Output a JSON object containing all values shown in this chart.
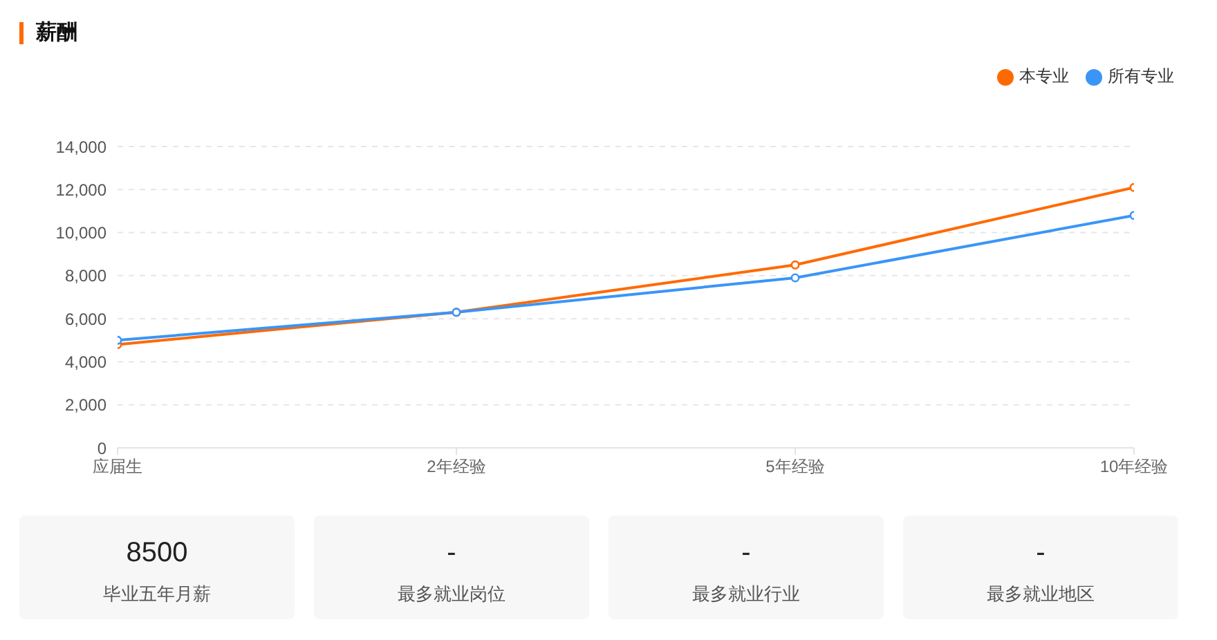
{
  "chart_data": [
    {
      "type": "line",
      "title": "薪酬",
      "categories": [
        "应届生",
        "2年经验",
        "5年经验",
        "10年经验"
      ],
      "series": [
        {
          "name": "本专业",
          "color": "#ff6a00",
          "values": [
            4800,
            6300,
            8500,
            12100
          ]
        },
        {
          "name": "所有专业",
          "color": "#3a95f7",
          "values": [
            5000,
            6300,
            7900,
            10800
          ]
        }
      ],
      "ylim": [
        0,
        14000
      ],
      "yticks": [
        0,
        {
          "value": 2000,
          "label": "2,000"
        },
        {
          "value": 4000,
          "label": "4,000"
        },
        {
          "value": 6000,
          "label": "6,000"
        },
        {
          "value": 8000,
          "label": "8,000"
        },
        {
          "value": 10000,
          "label": "10,000"
        },
        {
          "value": 12000,
          "label": "12,000"
        },
        {
          "value": 14000,
          "label": "14,000"
        }
      ],
      "grid": "y",
      "legend": "top right",
      "marker": "circle"
    },
    {
      "type": "other",
      "categories": [
        "毕业五年月薪",
        "最多就业岗位",
        "最多就业行业",
        "最多就业地区"
      ],
      "value_labels": [
        "8500",
        "-",
        "-",
        "-"
      ]
    }
  ]
}
